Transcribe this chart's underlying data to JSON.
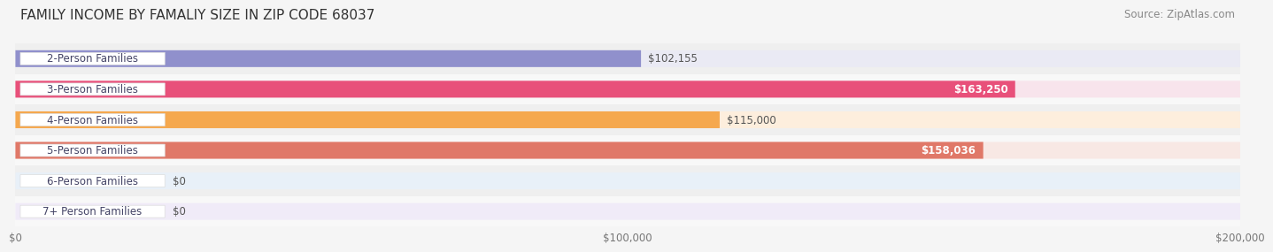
{
  "title": "FAMILY INCOME BY FAMALIY SIZE IN ZIP CODE 68037",
  "source": "Source: ZipAtlas.com",
  "categories": [
    "2-Person Families",
    "3-Person Families",
    "4-Person Families",
    "5-Person Families",
    "6-Person Families",
    "7+ Person Families"
  ],
  "values": [
    102155,
    163250,
    115000,
    158036,
    0,
    0
  ],
  "bar_colors": [
    "#9090cc",
    "#e8507a",
    "#f5a84e",
    "#e07868",
    "#a8c4e0",
    "#c4a8d4"
  ],
  "bar_bg_colors": [
    "#eaeaf4",
    "#f8e4ec",
    "#fdeedd",
    "#f8e8e4",
    "#e8f0f8",
    "#f0ebf8"
  ],
  "row_bg_colors": [
    "#efefef",
    "#f8f8f8",
    "#efefef",
    "#f8f8f8",
    "#efefef",
    "#f8f8f8"
  ],
  "label_colors": [
    "#333355",
    "#ffffff",
    "#333333",
    "#ffffff",
    "#333355",
    "#333355"
  ],
  "xlim": [
    0,
    200000
  ],
  "xticks": [
    0,
    100000,
    200000
  ],
  "xtick_labels": [
    "$0",
    "$100,000",
    "$200,000"
  ],
  "value_labels": [
    "$102,155",
    "$163,250",
    "$115,000",
    "$158,036",
    "$0",
    "$0"
  ],
  "background_color": "#f5f5f5",
  "bar_height": 0.55,
  "title_fontsize": 11,
  "source_fontsize": 8.5,
  "label_fontsize": 8.5,
  "value_fontsize": 8.5
}
